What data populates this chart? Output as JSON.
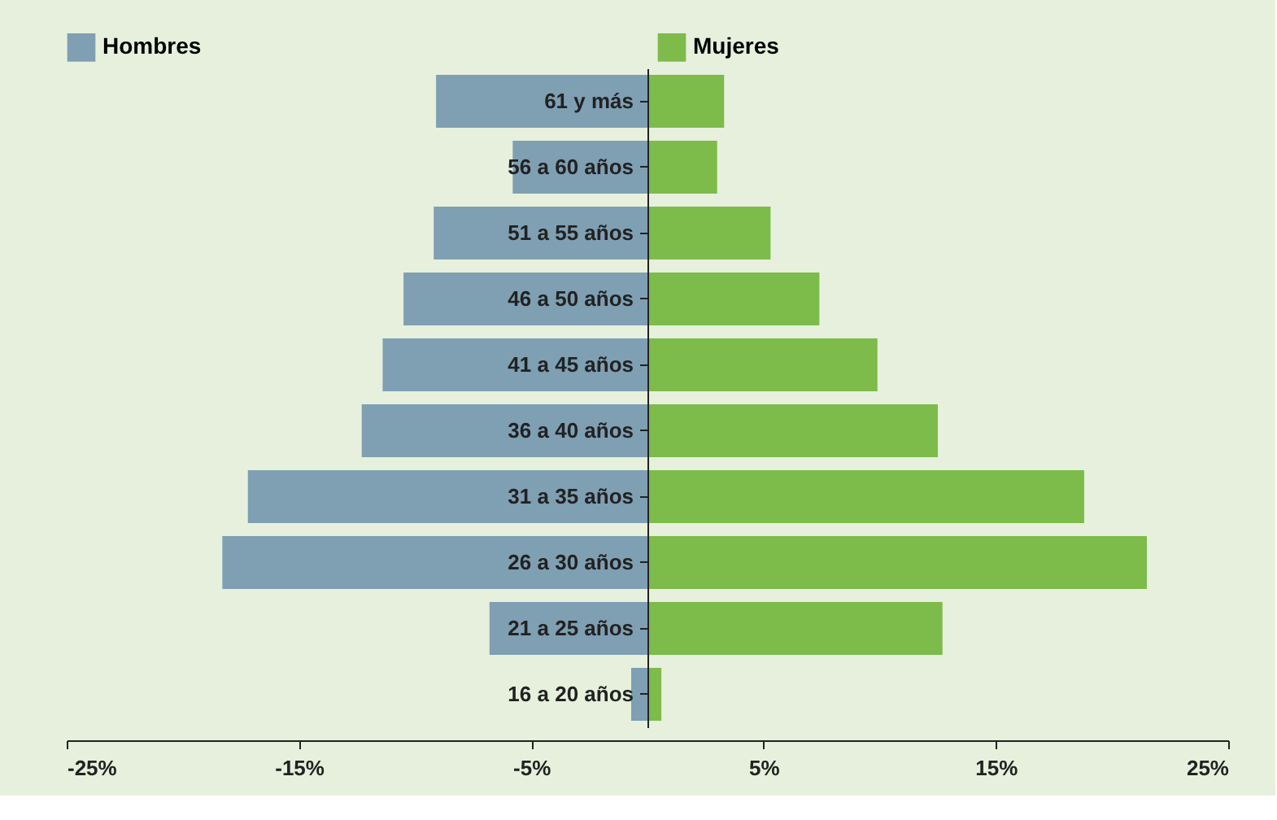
{
  "chart_data": {
    "type": "bar",
    "orientation": "horizontal",
    "categories": [
      "61 y más",
      "56 a 60 años",
      "51 a 55 años",
      "46 a 50 años",
      "41 a 45 años",
      "36 a 40 años",
      "31 a 35 años",
      "26 a 30 años",
      "21 a 25 años",
      "16 a 20 años"
    ],
    "series": [
      {
        "name": "Hombres",
        "color": "#7f9fb3",
        "values": [
          -9.1,
          -5.8,
          -9.2,
          -10.5,
          -11.4,
          -12.3,
          -17.2,
          -18.3,
          -6.8,
          -0.7
        ]
      },
      {
        "name": "Mujeres",
        "color": "#7dbb4a",
        "values": [
          3.3,
          3.0,
          5.3,
          7.4,
          9.9,
          12.5,
          18.8,
          21.5,
          12.7,
          0.6
        ]
      }
    ],
    "xlim": [
      -25,
      25
    ],
    "xticks": [
      {
        "value": -25,
        "label": "-25%"
      },
      {
        "value": -15,
        "label": "-15%"
      },
      {
        "value": -5,
        "label": "-5%"
      },
      {
        "value": 5,
        "label": "5%"
      },
      {
        "value": 15,
        "label": "15%"
      },
      {
        "value": 25,
        "label": "25%"
      }
    ],
    "stacked": true,
    "legend": "top",
    "grid": false
  }
}
